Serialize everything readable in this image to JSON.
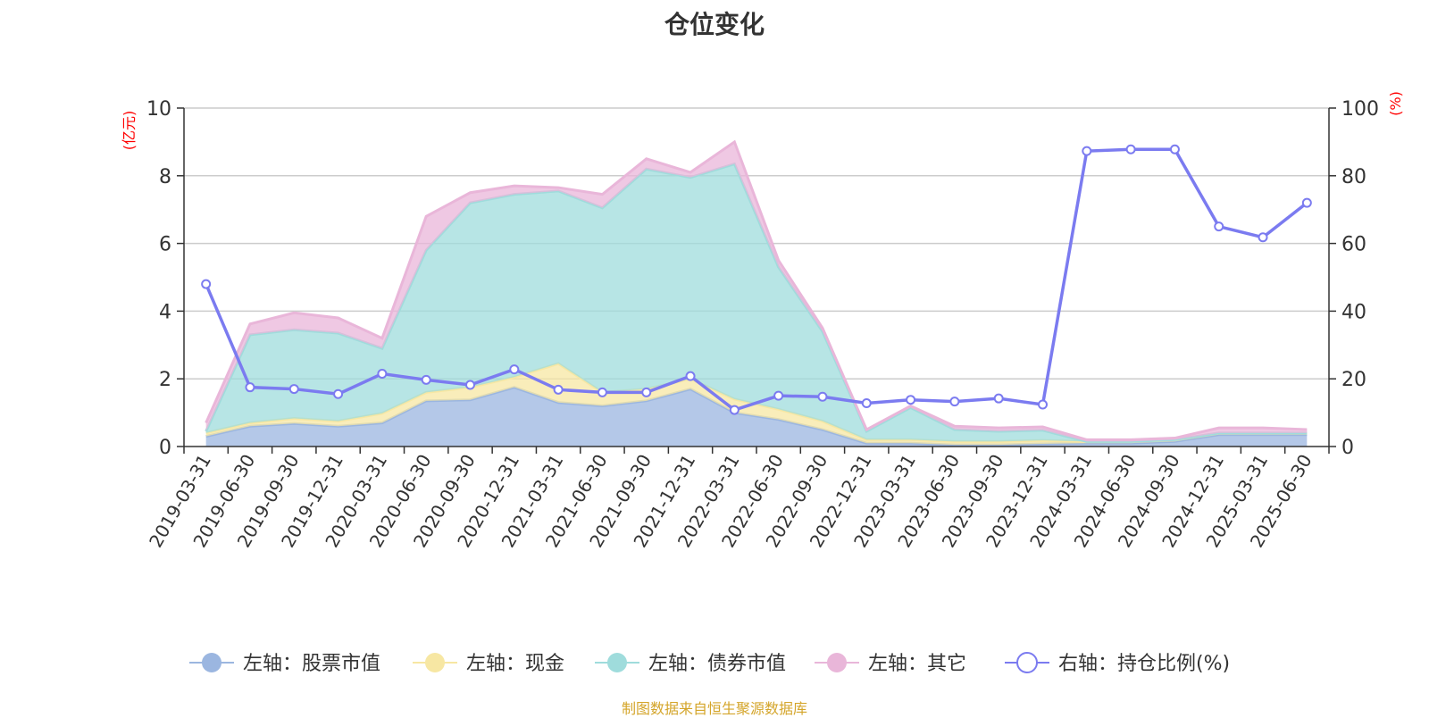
{
  "title": "仓位变化",
  "source": "制图数据来自恒生聚源数据库",
  "chart_data": {
    "type": "area",
    "title": "仓位变化",
    "x": [
      "2019-03-31",
      "2019-06-30",
      "2019-09-30",
      "2019-12-31",
      "2020-03-31",
      "2020-06-30",
      "2020-09-30",
      "2020-12-31",
      "2021-03-31",
      "2021-06-30",
      "2021-09-30",
      "2021-12-31",
      "2022-03-31",
      "2022-06-30",
      "2022-09-30",
      "2022-12-31",
      "2023-03-31",
      "2023-06-30",
      "2023-09-30",
      "2023-12-31",
      "2024-03-31",
      "2024-06-30",
      "2024-09-30",
      "2024-12-31",
      "2025-03-31",
      "2025-06-30"
    ],
    "left_axis": {
      "unit": "(亿元)",
      "ylim": [
        0,
        10
      ],
      "ticks": [
        "0",
        "2",
        "4",
        "6",
        "8",
        "10"
      ]
    },
    "right_axis": {
      "unit": "(%)",
      "ylim": [
        0,
        100
      ],
      "ticks": [
        "0",
        "20",
        "40",
        "60",
        "80",
        "100"
      ]
    },
    "grid": true,
    "legend_position": "bottom",
    "stacked_series": [
      {
        "name": "左轴：股票市值",
        "color": "#9bb6e0",
        "values": [
          0.3,
          0.6,
          0.68,
          0.6,
          0.7,
          1.35,
          1.38,
          1.75,
          1.3,
          1.2,
          1.35,
          1.7,
          1.0,
          0.8,
          0.5,
          0.1,
          0.1,
          0.05,
          0.05,
          0.08,
          0.1,
          0.1,
          0.15,
          0.35,
          0.35,
          0.35
        ]
      },
      {
        "name": "左轴：现金",
        "color": "#f7e7a3",
        "values": [
          0.1,
          0.1,
          0.15,
          0.15,
          0.28,
          0.25,
          0.37,
          0.3,
          1.15,
          0.4,
          0.35,
          0.3,
          0.4,
          0.3,
          0.25,
          0.1,
          0.1,
          0.1,
          0.1,
          0.1,
          0.05,
          0.05,
          0.05,
          0.05,
          0.05,
          0.05
        ]
      },
      {
        "name": "左轴：债券市值",
        "color": "#9fdcdc",
        "values": [
          0.05,
          2.6,
          2.62,
          2.6,
          1.92,
          4.2,
          5.45,
          5.4,
          5.1,
          5.45,
          6.5,
          5.95,
          6.95,
          4.2,
          2.65,
          0.25,
          0.95,
          0.35,
          0.3,
          0.3,
          0.0,
          0.0,
          0.0,
          0.0,
          0.0,
          0.0
        ]
      },
      {
        "name": "左轴：其它",
        "color": "#e9b6d9",
        "values": [
          0.25,
          0.32,
          0.5,
          0.45,
          0.3,
          1.0,
          0.3,
          0.25,
          0.1,
          0.4,
          0.3,
          0.15,
          0.65,
          0.2,
          0.1,
          0.05,
          0.05,
          0.1,
          0.1,
          0.1,
          0.05,
          0.05,
          0.05,
          0.15,
          0.15,
          0.1
        ]
      }
    ],
    "line_series": [
      {
        "name": "右轴：持仓比例(%)",
        "color": "#7b7bf0",
        "values": [
          48,
          17.5,
          17,
          15.5,
          21.5,
          19.7,
          18.2,
          22.8,
          16.8,
          16,
          16,
          20.8,
          10.8,
          15,
          14.7,
          12.8,
          13.8,
          13.3,
          14.2,
          12.4,
          87.3,
          87.8,
          87.8,
          65,
          61.8,
          72
        ]
      }
    ]
  }
}
